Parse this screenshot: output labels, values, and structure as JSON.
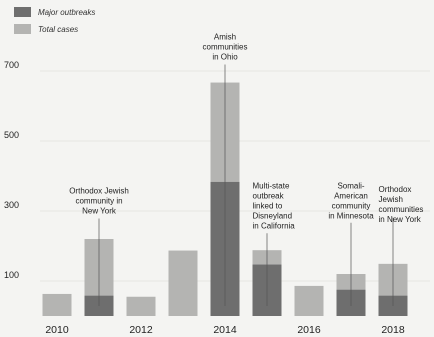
{
  "chart_data": {
    "type": "bar",
    "title": "",
    "xlabel": "",
    "ylabel": "",
    "ylim": [
      0,
      800
    ],
    "grid": true,
    "legend_position": "top-left",
    "yticks": [
      {
        "value": 100,
        "label": "100"
      },
      {
        "value": 300,
        "label": "300"
      },
      {
        "value": 500,
        "label": "500"
      },
      {
        "value": 700,
        "label": "700"
      }
    ],
    "x": [
      2010,
      2011,
      2012,
      2013,
      2014,
      2015,
      2016,
      2017,
      2018
    ],
    "x_tick_labels": [
      {
        "x": 2010,
        "label": "2010"
      },
      {
        "x": 2012,
        "label": "2012"
      },
      {
        "x": 2014,
        "label": "2014"
      },
      {
        "x": 2016,
        "label": "2016"
      },
      {
        "x": 2018,
        "label": "2018"
      }
    ],
    "series": [
      {
        "name": "Major outbreaks",
        "color": "#6e6e6e",
        "values": [
          0,
          58,
          0,
          0,
          383,
          147,
          0,
          75,
          58
        ]
      },
      {
        "name": "Total cases",
        "color": "#b4b4b2",
        "values": [
          63,
          220,
          55,
          187,
          667,
          188,
          86,
          120,
          149
        ]
      }
    ],
    "annotations": [
      {
        "x": 2011,
        "value": 220,
        "lines": [
          "Orthodox Jewish",
          "community in",
          "New York"
        ],
        "text_value": 370,
        "align": "center"
      },
      {
        "x": 2014,
        "value": 667,
        "lines": [
          "Amish",
          "communities",
          "in Ohio"
        ],
        "text_value": 810,
        "align": "center"
      },
      {
        "x": 2015,
        "value": 188,
        "lines": [
          "Multi-state",
          "outbreak",
          "linked to",
          "Disneyland",
          "in California"
        ],
        "text_value": 385,
        "align": "left"
      },
      {
        "x": 2017,
        "value": 255,
        "lines": [
          "Somali-",
          "American",
          "community",
          "in Minnesota"
        ],
        "text_value": 385,
        "align": "center"
      },
      {
        "x": 2018,
        "value": 270,
        "lines": [
          "Orthodox",
          "Jewish",
          "communities",
          "in New York"
        ],
        "text_value": 375,
        "align": "left"
      }
    ]
  },
  "colors": {
    "major": "#6e6e6e",
    "total": "#b4b4b2",
    "leader": "#555555",
    "background": "#f4f4f2"
  }
}
